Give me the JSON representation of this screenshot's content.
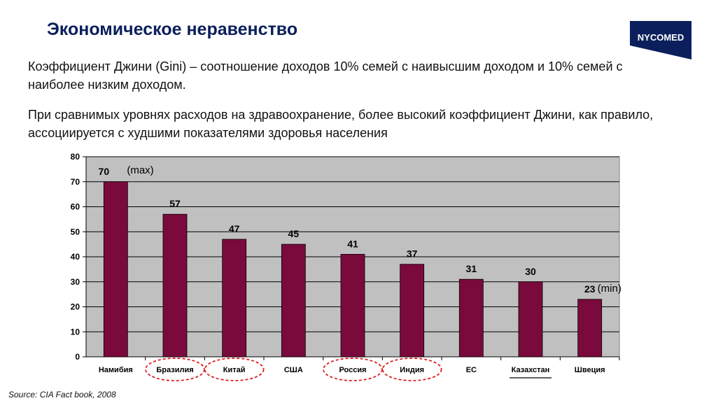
{
  "header": {
    "title": "Экономическое неравенство",
    "logo_text": "NYCOMED"
  },
  "body": {
    "paragraph1": "Коэффициент Джини (Gini) – соотношение доходов 10% семей с наивысшим доходом и 10% семей с наиболее низким доходом.",
    "paragraph2": "При сравнимых уровнях расходов на здравоохранение, более высокий коэффициент Джини, как правило, ассоциируется с худшими показателями здоровья населения"
  },
  "chart_data": {
    "type": "bar",
    "categories": [
      "Намибия",
      "Бразилия",
      "Китай",
      "США",
      "Россия",
      "Индия",
      "ЕС",
      "Казахстан",
      "Швеция"
    ],
    "values": [
      70,
      57,
      47,
      45,
      41,
      37,
      31,
      30,
      23
    ],
    "ylim": [
      0,
      80
    ],
    "yticks": [
      0,
      10,
      20,
      30,
      40,
      50,
      60,
      70,
      80
    ],
    "grid": true,
    "bar_color": "#7a0a3c",
    "plot_background": "#c0c0c0",
    "annotations": {
      "max_label": "(max)",
      "min_label": "(min)"
    },
    "circled_categories": [
      "Бразилия",
      "Китай",
      "Россия",
      "Индия"
    ],
    "underlined_categories": [
      "Казахстан"
    ],
    "circle_color": "#e02020"
  },
  "footer": {
    "source": "Source: CIA Fact book, 2008"
  }
}
